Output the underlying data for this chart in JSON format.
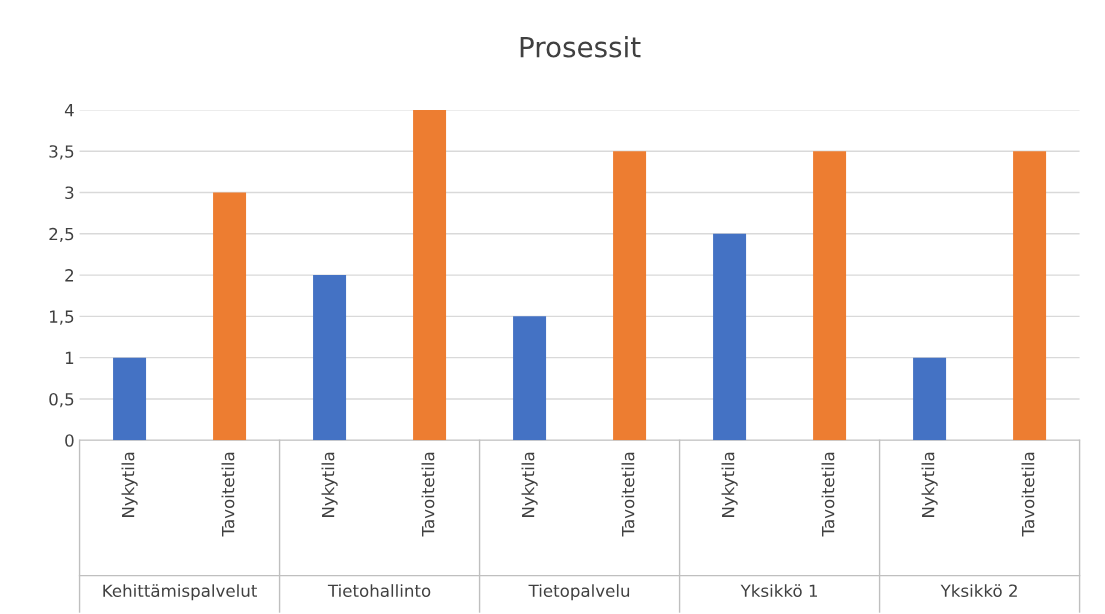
{
  "chart_data": {
    "type": "bar",
    "title": "Prosessit",
    "categories": [
      "Nykytila",
      "Tavoitetila",
      "Nykytila",
      "Tavoitetila",
      "Nykytila",
      "Tavoitetila",
      "Nykytila",
      "Tavoitetila",
      "Nykytila",
      "Tavoitetila"
    ],
    "values": [
      1,
      3,
      2,
      4,
      1.5,
      3.5,
      2.5,
      3.5,
      1,
      3.5
    ],
    "colors": [
      "#4472c4",
      "#ed7d31",
      "#4472c4",
      "#ed7d31",
      "#4472c4",
      "#ed7d31",
      "#4472c4",
      "#ed7d31",
      "#4472c4",
      "#ed7d31"
    ],
    "annotations": [
      "Kehittämispalvelut",
      "Tietohallinto",
      "Tietopalvelu",
      "Yksikkö 1",
      "Yksikkö 2"
    ],
    "ylim": [
      0,
      4
    ],
    "yticks": [
      0,
      {
        "value": 0.5,
        "label": "0,5"
      },
      1,
      {
        "value": 1.5,
        "label": "1,5"
      },
      2,
      {
        "value": 2.5,
        "label": "2,5"
      },
      3,
      {
        "value": 3.5,
        "label": "3,5"
      },
      4
    ],
    "grid": "y",
    "legend": false
  }
}
